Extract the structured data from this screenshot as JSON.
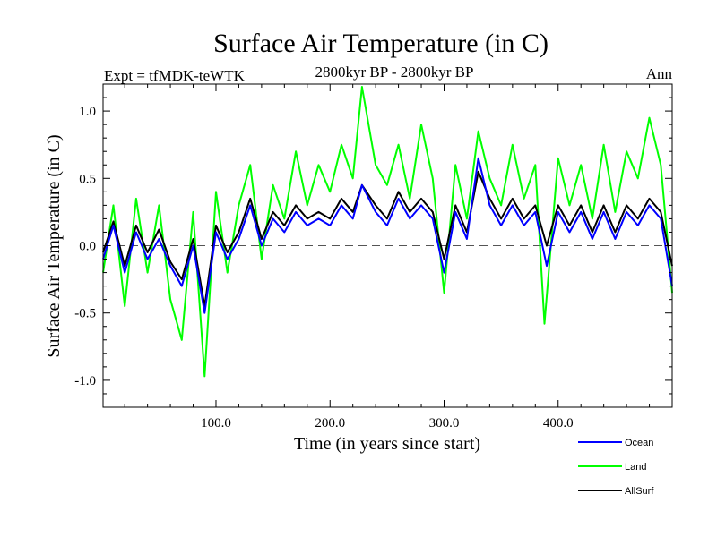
{
  "chart_data": {
    "type": "line",
    "title": "Surface Air Temperature (in C)",
    "subtitle_left": "Expt = tfMDK-teWTK",
    "subtitle_center": "2800kyr BP - 2800kyr BP",
    "subtitle_right": "Ann",
    "xlabel": "Time (in years since start)",
    "ylabel": "Surface Air Temperature (in C)",
    "xlim": [
      1,
      500
    ],
    "ylim": [
      -1.2,
      1.2
    ],
    "xticks": [
      100,
      200,
      300,
      400
    ],
    "xtick_labels": [
      "100.0",
      "200.0",
      "300.0",
      "400.0"
    ],
    "yticks": [
      -1.0,
      -0.5,
      0.0,
      0.5,
      1.0
    ],
    "ytick_labels": [
      "-1.0",
      "-0.5",
      "0.0",
      "0.5",
      "1.0"
    ],
    "zero_line": "dashed",
    "legend_position": "bottom-right",
    "series": [
      {
        "name": "Land",
        "color": "#00ff00",
        "x": [
          1,
          10,
          20,
          30,
          40,
          50,
          60,
          70,
          80,
          90,
          100,
          110,
          120,
          130,
          140,
          150,
          160,
          170,
          180,
          190,
          200,
          210,
          220,
          228,
          240,
          250,
          260,
          270,
          280,
          290,
          300,
          310,
          320,
          330,
          340,
          350,
          360,
          370,
          380,
          388,
          400,
          410,
          420,
          430,
          440,
          450,
          460,
          470,
          480,
          490,
          500
        ],
        "values": [
          -0.2,
          0.3,
          -0.45,
          0.35,
          -0.2,
          0.3,
          -0.4,
          -0.7,
          0.25,
          -0.97,
          0.4,
          -0.2,
          0.3,
          0.6,
          -0.1,
          0.45,
          0.2,
          0.7,
          0.3,
          0.6,
          0.4,
          0.75,
          0.5,
          1.18,
          0.6,
          0.45,
          0.75,
          0.35,
          0.9,
          0.5,
          -0.35,
          0.6,
          0.2,
          0.85,
          0.5,
          0.3,
          0.75,
          0.35,
          0.6,
          -0.58,
          0.65,
          0.3,
          0.6,
          0.2,
          0.75,
          0.25,
          0.7,
          0.5,
          0.95,
          0.6,
          -0.35
        ]
      },
      {
        "name": "AllSurf",
        "color": "#000000",
        "x": [
          1,
          10,
          20,
          30,
          40,
          50,
          60,
          70,
          80,
          90,
          100,
          110,
          120,
          130,
          140,
          150,
          160,
          170,
          180,
          190,
          200,
          210,
          220,
          228,
          240,
          250,
          260,
          270,
          280,
          290,
          300,
          310,
          320,
          330,
          340,
          350,
          360,
          370,
          380,
          390,
          400,
          410,
          420,
          430,
          440,
          450,
          460,
          470,
          480,
          490,
          500
        ],
        "values": [
          -0.05,
          0.18,
          -0.15,
          0.15,
          -0.05,
          0.12,
          -0.12,
          -0.25,
          0.05,
          -0.45,
          0.15,
          -0.05,
          0.1,
          0.35,
          0.05,
          0.25,
          0.15,
          0.3,
          0.2,
          0.25,
          0.2,
          0.35,
          0.25,
          0.45,
          0.3,
          0.2,
          0.4,
          0.25,
          0.35,
          0.25,
          -0.1,
          0.3,
          0.1,
          0.55,
          0.35,
          0.2,
          0.35,
          0.2,
          0.3,
          0.0,
          0.3,
          0.15,
          0.3,
          0.1,
          0.3,
          0.1,
          0.3,
          0.2,
          0.35,
          0.25,
          -0.15
        ]
      },
      {
        "name": "Ocean",
        "color": "#0000ff",
        "x": [
          1,
          10,
          20,
          30,
          40,
          50,
          60,
          70,
          80,
          90,
          100,
          110,
          120,
          130,
          140,
          150,
          160,
          170,
          180,
          190,
          200,
          210,
          220,
          228,
          240,
          250,
          260,
          270,
          280,
          290,
          300,
          310,
          320,
          330,
          340,
          350,
          360,
          370,
          380,
          390,
          400,
          410,
          420,
          430,
          440,
          450,
          460,
          470,
          480,
          490,
          500
        ],
        "values": [
          -0.1,
          0.15,
          -0.2,
          0.1,
          -0.1,
          0.05,
          -0.15,
          -0.3,
          0.0,
          -0.5,
          0.1,
          -0.1,
          0.05,
          0.3,
          0.0,
          0.2,
          0.1,
          0.25,
          0.15,
          0.2,
          0.15,
          0.3,
          0.2,
          0.45,
          0.25,
          0.15,
          0.35,
          0.2,
          0.3,
          0.2,
          -0.2,
          0.25,
          0.05,
          0.65,
          0.3,
          0.15,
          0.3,
          0.15,
          0.25,
          -0.15,
          0.25,
          0.1,
          0.25,
          0.05,
          0.25,
          0.05,
          0.25,
          0.15,
          0.3,
          0.2,
          -0.3
        ]
      }
    ],
    "legend": [
      {
        "name": "Ocean",
        "color": "#0000ff"
      },
      {
        "name": "Land",
        "color": "#00ff00"
      },
      {
        "name": "AllSurf",
        "color": "#000000"
      }
    ]
  }
}
